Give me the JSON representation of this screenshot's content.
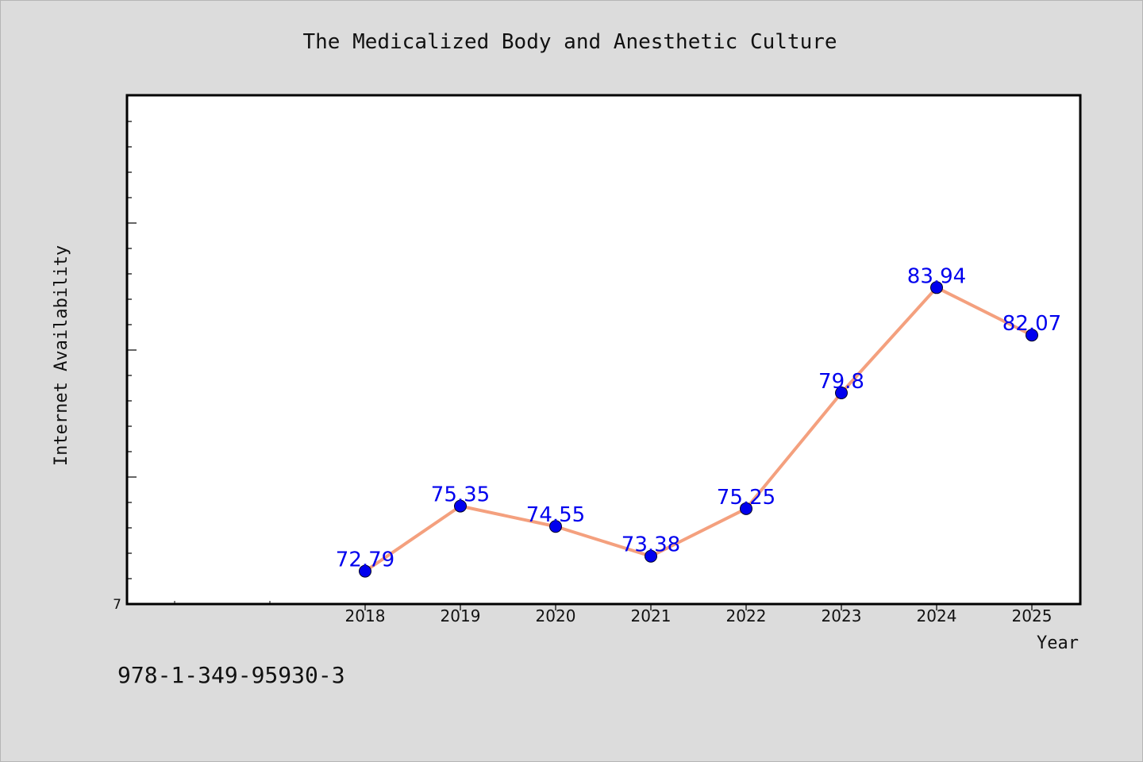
{
  "chart_data": {
    "type": "line",
    "title": "The Medicalized Body and Anesthetic Culture",
    "xlabel": "Year",
    "ylabel": "Internet Availability",
    "categories": [
      "2018",
      "2019",
      "2020",
      "2021",
      "2022",
      "2023",
      "2024",
      "2025"
    ],
    "series": [
      {
        "values": [
          72.79,
          75.35,
          74.55,
          73.38,
          75.25,
          79.8,
          83.94,
          82.07
        ],
        "data_labels": [
          "72.79",
          "75.35",
          "74.55",
          "73.38",
          "75.25",
          "79.8",
          "83.94",
          "82.07"
        ],
        "line_color": "#f4a07e",
        "marker_color": "#0000ee"
      }
    ],
    "y_tick_labels": [
      "7"
    ],
    "ylim": [
      71.5,
      91.5
    ],
    "grid": false,
    "legend": "none",
    "label_color": "#0000ee"
  },
  "footer": {
    "isbn": "978-1-349-95930-3"
  }
}
